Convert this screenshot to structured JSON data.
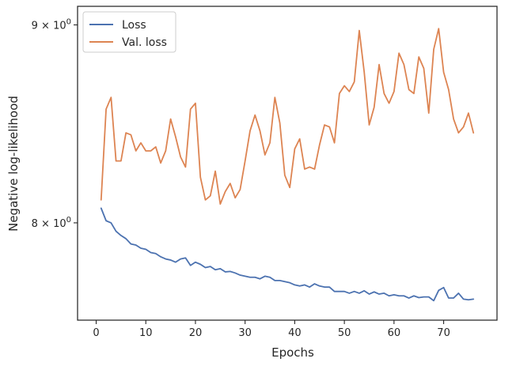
{
  "chart_data": {
    "type": "line",
    "title": "",
    "xlabel": "Epochs",
    "ylabel": "Negative log-likelihood",
    "yscale": "log",
    "xlim": [
      -3.75,
      80.75
    ],
    "ylim": [
      7.55,
      9.1
    ],
    "xticks": [
      0,
      10,
      20,
      30,
      40,
      50,
      60,
      70
    ],
    "xtick_labels": [
      "0",
      "10",
      "20",
      "30",
      "40",
      "50",
      "60",
      "70"
    ],
    "yticks": [
      8,
      9
    ],
    "ytick_labels": [
      {
        "base": "8",
        "times": "×",
        "ten": "10",
        "exp": "0"
      },
      {
        "base": "9",
        "times": "×",
        "ten": "10",
        "exp": "0"
      }
    ],
    "grid": false,
    "legend_position": "top-left",
    "x": [
      1,
      2,
      3,
      4,
      5,
      6,
      7,
      8,
      9,
      10,
      11,
      12,
      13,
      14,
      15,
      16,
      17,
      18,
      19,
      20,
      21,
      22,
      23,
      24,
      25,
      26,
      27,
      28,
      29,
      30,
      31,
      32,
      33,
      34,
      35,
      36,
      37,
      38,
      39,
      40,
      41,
      42,
      43,
      44,
      45,
      46,
      47,
      48,
      49,
      50,
      51,
      52,
      53,
      54,
      55,
      56,
      57,
      58,
      59,
      60,
      61,
      62,
      63,
      64,
      65,
      66,
      67,
      68,
      69,
      70,
      71,
      72,
      73,
      74,
      75,
      76
    ],
    "series": [
      {
        "name": "Loss",
        "color": "#4c72b0",
        "values": [
          8.07,
          8.01,
          8.0,
          7.96,
          7.94,
          7.925,
          7.9,
          7.895,
          7.88,
          7.875,
          7.86,
          7.855,
          7.84,
          7.83,
          7.825,
          7.815,
          7.83,
          7.835,
          7.8,
          7.815,
          7.805,
          7.79,
          7.795,
          7.78,
          7.785,
          7.77,
          7.772,
          7.765,
          7.755,
          7.75,
          7.745,
          7.745,
          7.738,
          7.75,
          7.745,
          7.73,
          7.73,
          7.725,
          7.72,
          7.71,
          7.705,
          7.71,
          7.7,
          7.715,
          7.705,
          7.7,
          7.7,
          7.68,
          7.68,
          7.68,
          7.672,
          7.68,
          7.672,
          7.683,
          7.668,
          7.678,
          7.668,
          7.672,
          7.66,
          7.665,
          7.66,
          7.66,
          7.65,
          7.66,
          7.652,
          7.655,
          7.655,
          7.638,
          7.685,
          7.698,
          7.65,
          7.65,
          7.672,
          7.645,
          7.642,
          7.645
        ]
      },
      {
        "name": "Val. loss",
        "color": "#dd8452",
        "values": [
          8.11,
          8.56,
          8.62,
          8.3,
          8.3,
          8.44,
          8.43,
          8.35,
          8.39,
          8.35,
          8.35,
          8.37,
          8.29,
          8.35,
          8.51,
          8.42,
          8.32,
          8.27,
          8.56,
          8.59,
          8.22,
          8.11,
          8.13,
          8.25,
          8.09,
          8.15,
          8.19,
          8.12,
          8.16,
          8.3,
          8.45,
          8.53,
          8.45,
          8.33,
          8.39,
          8.62,
          8.49,
          8.23,
          8.17,
          8.36,
          8.41,
          8.26,
          8.27,
          8.26,
          8.38,
          8.48,
          8.47,
          8.39,
          8.64,
          8.68,
          8.65,
          8.7,
          8.97,
          8.75,
          8.48,
          8.57,
          8.79,
          8.64,
          8.59,
          8.65,
          8.85,
          8.79,
          8.66,
          8.64,
          8.83,
          8.77,
          8.54,
          8.87,
          8.98,
          8.75,
          8.66,
          8.51,
          8.44,
          8.47,
          8.54,
          8.44
        ]
      }
    ]
  }
}
